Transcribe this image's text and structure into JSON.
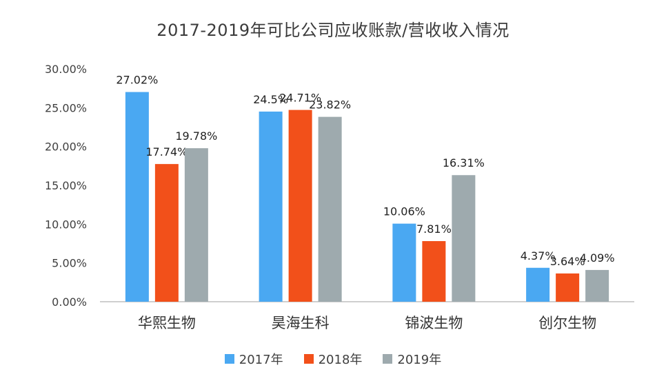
{
  "chart_data": {
    "type": "bar",
    "title": "2017-2019年可比公司应收账款/营收收入情况",
    "categories": [
      "华熙生物",
      "昊海生科",
      "锦波生物",
      "创尔生物"
    ],
    "series": [
      {
        "name": "2017年",
        "color": "#4aa8f2",
        "values": [
          27.02,
          24.5,
          10.06,
          4.37
        ],
        "labels": [
          "27.02%",
          "24.5%",
          "10.06%",
          "4.37%"
        ]
      },
      {
        "name": "2018年",
        "color": "#f2501a",
        "values": [
          17.74,
          24.71,
          7.81,
          3.64
        ],
        "labels": [
          "17.74%",
          "24.71%",
          "7.81%",
          "3.64%"
        ]
      },
      {
        "name": "2019年",
        "color": "#9eaaae",
        "values": [
          19.78,
          23.82,
          16.31,
          4.09
        ],
        "labels": [
          "19.78%",
          "23.82%",
          "16.31%",
          "4.09%"
        ]
      }
    ],
    "ylim": [
      0,
      30
    ],
    "yticks": [
      "0.00%",
      "5.00%",
      "10.00%",
      "15.00%",
      "20.00%",
      "25.00%",
      "30.00%"
    ],
    "xlabel": "",
    "ylabel": "",
    "grid": false,
    "legend_position": "bottom"
  }
}
